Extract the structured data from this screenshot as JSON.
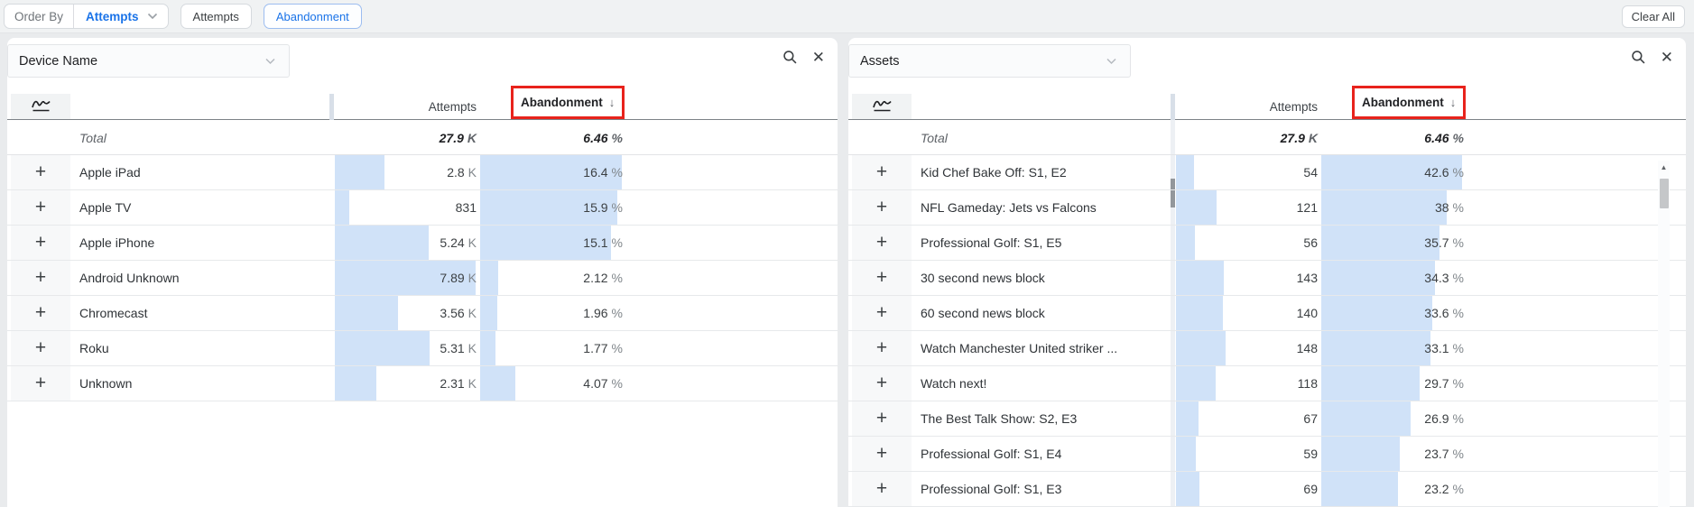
{
  "toolbar": {
    "order_by_label": "Order By",
    "order_by_value": "Attempts",
    "chips": [
      {
        "label": "Attempts",
        "active": false
      },
      {
        "label": "Abandonment",
        "active": true
      }
    ],
    "clear_all_label": "Clear All"
  },
  "table_columns": {
    "attempts_label": "Attempts",
    "abandonment_label": "Abandonment",
    "sort_arrow": "↓"
  },
  "icons": {
    "close_glyph": "✕",
    "plus_glyph": "+",
    "scroll_up_glyph": "▲"
  },
  "colors": {
    "accent_blue": "#1a73e8",
    "bar_blue": "#d0e2f8",
    "annotation_red": "#e8231c"
  },
  "panels": [
    {
      "title": "Device Name",
      "has_scrollbar": false,
      "total": {
        "label": "Total",
        "attempts": "27.9",
        "attempts_unit": "K",
        "abandonment": "6.46",
        "abandonment_unit": "%"
      },
      "rows": [
        {
          "name": "Apple iPad",
          "attempts_display": "2.8",
          "attempts_unit": "K",
          "attempts": 2800,
          "abandonment_display": "16.4",
          "abandonment_unit": "%",
          "abandonment": 16.4
        },
        {
          "name": "Apple TV",
          "attempts_display": "831",
          "attempts_unit": "",
          "attempts": 831,
          "abandonment_display": "15.9",
          "abandonment_unit": "%",
          "abandonment": 15.9
        },
        {
          "name": "Apple iPhone",
          "attempts_display": "5.24",
          "attempts_unit": "K",
          "attempts": 5240,
          "abandonment_display": "15.1",
          "abandonment_unit": "%",
          "abandonment": 15.1
        },
        {
          "name": "Android Unknown",
          "attempts_display": "7.89",
          "attempts_unit": "K",
          "attempts": 7890,
          "abandonment_display": "2.12",
          "abandonment_unit": "%",
          "abandonment": 2.12
        },
        {
          "name": "Chromecast",
          "attempts_display": "3.56",
          "attempts_unit": "K",
          "attempts": 3560,
          "abandonment_display": "1.96",
          "abandonment_unit": "%",
          "abandonment": 1.96
        },
        {
          "name": "Roku",
          "attempts_display": "5.31",
          "attempts_unit": "K",
          "attempts": 5310,
          "abandonment_display": "1.77",
          "abandonment_unit": "%",
          "abandonment": 1.77
        },
        {
          "name": "Unknown",
          "attempts_display": "2.31",
          "attempts_unit": "K",
          "attempts": 2310,
          "abandonment_display": "4.07",
          "abandonment_unit": "%",
          "abandonment": 4.07
        }
      ]
    },
    {
      "title": "Assets",
      "has_scrollbar": true,
      "total": {
        "label": "Total",
        "attempts": "27.9",
        "attempts_unit": "K",
        "abandonment": "6.46",
        "abandonment_unit": "%"
      },
      "rows": [
        {
          "name": "Kid Chef Bake Off: S1, E2",
          "attempts_display": "54",
          "attempts_unit": "",
          "attempts": 54,
          "abandonment_display": "42.6",
          "abandonment_unit": "%",
          "abandonment": 42.6
        },
        {
          "name": "NFL Gameday: Jets vs Falcons",
          "attempts_display": "121",
          "attempts_unit": "",
          "attempts": 121,
          "abandonment_display": "38",
          "abandonment_unit": "%",
          "abandonment": 38
        },
        {
          "name": "Professional Golf: S1, E5",
          "attempts_display": "56",
          "attempts_unit": "",
          "attempts": 56,
          "abandonment_display": "35.7",
          "abandonment_unit": "%",
          "abandonment": 35.7
        },
        {
          "name": "30 second news block",
          "attempts_display": "143",
          "attempts_unit": "",
          "attempts": 143,
          "abandonment_display": "34.3",
          "abandonment_unit": "%",
          "abandonment": 34.3
        },
        {
          "name": "60 second news block",
          "attempts_display": "140",
          "attempts_unit": "",
          "attempts": 140,
          "abandonment_display": "33.6",
          "abandonment_unit": "%",
          "abandonment": 33.6
        },
        {
          "name": "Watch Manchester United striker ...",
          "attempts_display": "148",
          "attempts_unit": "",
          "attempts": 148,
          "abandonment_display": "33.1",
          "abandonment_unit": "%",
          "abandonment": 33.1
        },
        {
          "name": "Watch next!",
          "attempts_display": "118",
          "attempts_unit": "",
          "attempts": 118,
          "abandonment_display": "29.7",
          "abandonment_unit": "%",
          "abandonment": 29.7
        },
        {
          "name": "The Best Talk Show: S2, E3",
          "attempts_display": "67",
          "attempts_unit": "",
          "attempts": 67,
          "abandonment_display": "26.9",
          "abandonment_unit": "%",
          "abandonment": 26.9
        },
        {
          "name": "Professional Golf: S1, E4",
          "attempts_display": "59",
          "attempts_unit": "",
          "attempts": 59,
          "abandonment_display": "23.7",
          "abandonment_unit": "%",
          "abandonment": 23.7
        },
        {
          "name": "Professional Golf: S1, E3",
          "attempts_display": "69",
          "attempts_unit": "",
          "attempts": 69,
          "abandonment_display": "23.2",
          "abandonment_unit": "%",
          "abandonment": 23.2
        }
      ]
    }
  ]
}
